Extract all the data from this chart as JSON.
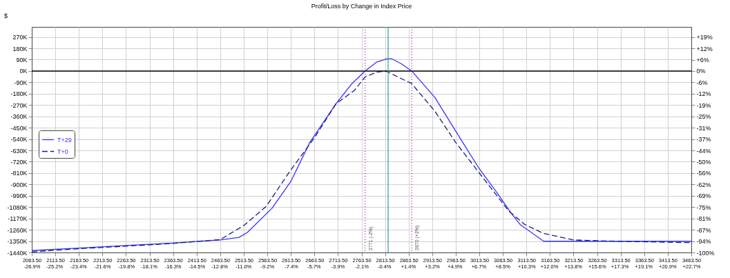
{
  "chart_data": {
    "type": "line",
    "title": "Profit/Loss by Change in Index Price",
    "ylabel": "$",
    "series": [
      {
        "name": "T+29",
        "color": "#3333ff",
        "line_style": "solid",
        "x": [
          2063.5,
          2163.5,
          2263.5,
          2363.5,
          2413.5,
          2463.5,
          2503.5,
          2521,
          2573.5,
          2613.5,
          2654,
          2709,
          2743,
          2771,
          2795,
          2818,
          2828,
          2848,
          2870,
          2919,
          2978,
          3012,
          3051,
          3081,
          3100,
          3150,
          3463.5
        ],
        "values": [
          -1425,
          -1405,
          -1385,
          -1365,
          -1352,
          -1341,
          -1320,
          -1281,
          -1089,
          -876,
          -565,
          -261,
          -100,
          0,
          70,
          97,
          97,
          57,
          0,
          -209,
          -565,
          -768,
          -966,
          -1127,
          -1218,
          -1351,
          -1351
        ]
      },
      {
        "name": "T+0",
        "color": "#1a1a80",
        "line_style": "dashed",
        "x": [
          2063.5,
          2163.5,
          2263.5,
          2363.5,
          2463.5,
          2513.5,
          2561,
          2610,
          2666,
          2709,
          2748,
          2771,
          2795,
          2815,
          2835,
          2870,
          2919,
          2963,
          3012,
          3076,
          3110,
          3150,
          3214,
          3307,
          3463.5
        ],
        "values": [
          -1435,
          -1410,
          -1390,
          -1368,
          -1338,
          -1226,
          -1075,
          -803,
          -516,
          -261,
          -155,
          -47,
          -10,
          0,
          -37,
          -100,
          -318,
          -565,
          -803,
          -1111,
          -1218,
          -1289,
          -1341,
          -1351,
          -1362
        ]
      }
    ],
    "xlim": [
      2063.5,
      3463.5
    ],
    "xticks": [
      {
        "value": 2063.5,
        "label": "2063.50"
      },
      {
        "value": 2113.5,
        "label": "2113.50"
      },
      {
        "value": 2163.5,
        "label": "2163.50"
      },
      {
        "value": 2213.5,
        "label": "2213.50"
      },
      {
        "value": 2263.5,
        "label": "2263.50"
      },
      {
        "value": 2313.5,
        "label": "2313.50"
      },
      {
        "value": 2363.5,
        "label": "2363.50"
      },
      {
        "value": 2413.5,
        "label": "2413.50"
      },
      {
        "value": 2463.5,
        "label": "2463.50"
      },
      {
        "value": 2513.5,
        "label": "2513.50"
      },
      {
        "value": 2563.5,
        "label": "2563.50"
      },
      {
        "value": 2613.5,
        "label": "2613.50"
      },
      {
        "value": 2663.5,
        "label": "2663.50"
      },
      {
        "value": 2713.5,
        "label": "2713.50"
      },
      {
        "value": 2763.5,
        "label": "2763.50"
      },
      {
        "value": 2813.5,
        "label": "2813.50"
      },
      {
        "value": 2863.5,
        "label": "2863.50"
      },
      {
        "value": 2913.5,
        "label": "2913.50"
      },
      {
        "value": 2963.5,
        "label": "2963.50"
      },
      {
        "value": 3013.5,
        "label": "3013.50"
      },
      {
        "value": 3063.5,
        "label": "3063.50"
      },
      {
        "value": 3113.5,
        "label": "3113.50"
      },
      {
        "value": 3163.5,
        "label": "3163.50"
      },
      {
        "value": 3213.5,
        "label": "3213.50"
      },
      {
        "value": 3263.5,
        "label": "3263.50"
      },
      {
        "value": 3313.5,
        "label": "3313.50"
      },
      {
        "value": 3363.5,
        "label": "3363.50"
      },
      {
        "value": 3413.5,
        "label": "3413.50"
      },
      {
        "value": 3463.5,
        "label": "3463.50"
      }
    ],
    "x2lim": [
      -26.9,
      22.7
    ],
    "x2ticks": [
      {
        "value": -26.9,
        "label": "-26.9%"
      },
      {
        "value": -25.2,
        "label": "-25.2%"
      },
      {
        "value": -23.4,
        "label": "-23.4%"
      },
      {
        "value": -21.6,
        "label": "-21.6%"
      },
      {
        "value": -19.8,
        "label": "-19.8%"
      },
      {
        "value": -18.1,
        "label": "-18.1%"
      },
      {
        "value": -16.3,
        "label": "-16.3%"
      },
      {
        "value": -14.5,
        "label": "-14.5%"
      },
      {
        "value": -12.8,
        "label": "-12.8%"
      },
      {
        "value": -11.0,
        "label": "-11.0%"
      },
      {
        "value": -9.2,
        "label": "-9.2%"
      },
      {
        "value": -7.4,
        "label": "-7.4%"
      },
      {
        "value": -5.7,
        "label": "-5.7%"
      },
      {
        "value": -3.9,
        "label": "-3.9%"
      },
      {
        "value": -2.1,
        "label": "-2.1%"
      },
      {
        "value": -0.4,
        "label": "-0.4%"
      },
      {
        "value": 1.4,
        "label": "+1.4%"
      },
      {
        "value": 3.2,
        "label": "+3.2%"
      },
      {
        "value": 4.9,
        "label": "+4.9%"
      },
      {
        "value": 6.7,
        "label": "+6.7%"
      },
      {
        "value": 8.5,
        "label": "+8.5%"
      },
      {
        "value": 10.3,
        "label": "+10.3%"
      },
      {
        "value": 12.0,
        "label": "+12.0%"
      },
      {
        "value": 13.8,
        "label": "+13.8%"
      },
      {
        "value": 15.6,
        "label": "+15.6%"
      },
      {
        "value": 17.3,
        "label": "+17.3%"
      },
      {
        "value": 19.1,
        "label": "+19.1%"
      },
      {
        "value": 20.9,
        "label": "+20.9%"
      },
      {
        "value": 22.7,
        "label": "+22.7%"
      }
    ],
    "ylim": [
      -1440,
      350
    ],
    "yticks": [
      {
        "value": 270,
        "label": "270K"
      },
      {
        "value": 180,
        "label": "180K"
      },
      {
        "value": 90,
        "label": "90K"
      },
      {
        "value": 0,
        "label": "0K"
      },
      {
        "value": -90,
        "label": "-90K"
      },
      {
        "value": -180,
        "label": "-180K"
      },
      {
        "value": -270,
        "label": "-270K"
      },
      {
        "value": -360,
        "label": "-360K"
      },
      {
        "value": -450,
        "label": "-450K"
      },
      {
        "value": -540,
        "label": "-540K"
      },
      {
        "value": -630,
        "label": "-630K"
      },
      {
        "value": -720,
        "label": "-720K"
      },
      {
        "value": -810,
        "label": "-810K"
      },
      {
        "value": -900,
        "label": "-900K"
      },
      {
        "value": -990,
        "label": "-990K"
      },
      {
        "value": -1080,
        "label": "-1080K"
      },
      {
        "value": -1170,
        "label": "-1170K"
      },
      {
        "value": -1260,
        "label": "-1260K"
      },
      {
        "value": -1350,
        "label": "-1350K"
      },
      {
        "value": -1440,
        "label": "-1440K"
      }
    ],
    "y2lim": [
      -100,
      24.31
    ],
    "y2ticks": [
      {
        "value": 18.75,
        "label": "+19%"
      },
      {
        "value": 12.5,
        "label": "+12%"
      },
      {
        "value": 6.25,
        "label": "+6%"
      },
      {
        "value": 0,
        "label": "0%"
      },
      {
        "value": -6.25,
        "label": "-6%"
      },
      {
        "value": -12.5,
        "label": "-12%"
      },
      {
        "value": -18.75,
        "label": "-19%"
      },
      {
        "value": -25,
        "label": "-25%"
      },
      {
        "value": -31.25,
        "label": "-31%"
      },
      {
        "value": -37.5,
        "label": "-37%"
      },
      {
        "value": -43.75,
        "label": "-44%"
      },
      {
        "value": -50,
        "label": "-50%"
      },
      {
        "value": -56.25,
        "label": "-56%"
      },
      {
        "value": -62.5,
        "label": "-62%"
      },
      {
        "value": -68.75,
        "label": "-69%"
      },
      {
        "value": -75,
        "label": "-75%"
      },
      {
        "value": -81.25,
        "label": "-81%"
      },
      {
        "value": -87.5,
        "label": "-87%"
      },
      {
        "value": -93.75,
        "label": "-94%"
      },
      {
        "value": -100,
        "label": "-100%"
      }
    ],
    "ref_lines": [
      {
        "axis": "y",
        "value": 0,
        "color": "#000000",
        "line_style": "solid"
      },
      {
        "axis": "x",
        "value": 2771,
        "label": "2771 (-2%)",
        "color": "#990099",
        "line_style": "dotted"
      },
      {
        "axis": "x",
        "value": 2870,
        "label": "2870 (+2%)",
        "color": "#990099",
        "line_style": "dotted"
      },
      {
        "axis": "x",
        "value": 2820,
        "color": "#339999",
        "line_style": "solid"
      }
    ],
    "grid": true,
    "legend": "left",
    "marker": "none"
  }
}
